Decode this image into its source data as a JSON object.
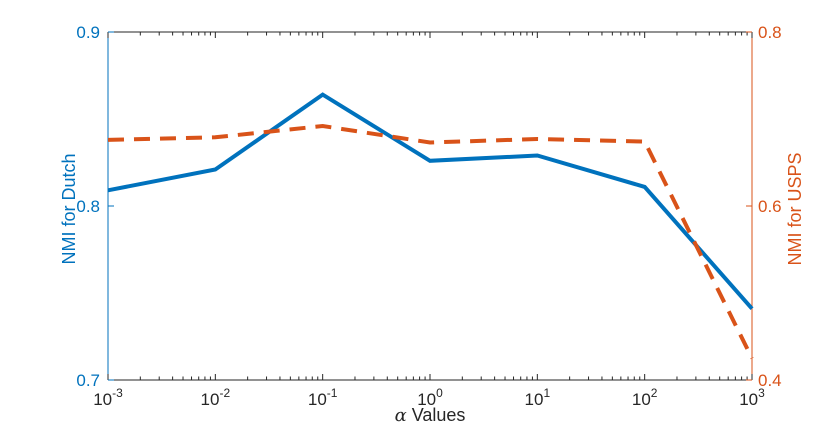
{
  "chart_data": {
    "type": "line",
    "title": "",
    "x": [
      -3,
      -2,
      -1,
      0,
      1,
      2,
      3
    ],
    "x_tick_labels": [
      {
        "base": "10",
        "exp": "-3"
      },
      {
        "base": "10",
        "exp": "-2"
      },
      {
        "base": "10",
        "exp": "-1"
      },
      {
        "base": "10",
        "exp": "0"
      },
      {
        "base": "10",
        "exp": "1"
      },
      {
        "base": "10",
        "exp": "2"
      },
      {
        "base": "10",
        "exp": "3"
      }
    ],
    "xlabel_symbol": "α",
    "xlabel_text": " Values",
    "xscale": "log",
    "xlim": [
      -3,
      3
    ],
    "y_left": {
      "label": "NMI for Dutch",
      "ylim": [
        0.7,
        0.9
      ],
      "ticks": [
        0.7,
        0.8,
        0.9
      ],
      "tick_labels": [
        "0.7",
        "0.8",
        "0.9"
      ],
      "color": "#0072BD"
    },
    "y_right": {
      "label": "NMI for USPS",
      "ylim": [
        0.4,
        0.8
      ],
      "ticks": [
        0.4,
        0.6,
        0.8
      ],
      "tick_labels": [
        "0.4",
        "0.6",
        "0.8"
      ],
      "color": "#D95319"
    },
    "series": [
      {
        "name": "NMI for Dutch",
        "axis": "left",
        "style": "solid",
        "color": "#0072BD",
        "values": [
          0.809,
          0.821,
          0.864,
          0.826,
          0.829,
          0.811,
          0.741
        ]
      },
      {
        "name": "NMI for USPS",
        "axis": "right",
        "style": "dashed",
        "color": "#D95319",
        "values": [
          0.676,
          0.679,
          0.692,
          0.673,
          0.677,
          0.674,
          0.425
        ]
      }
    ],
    "grid": false,
    "legend": "none"
  }
}
